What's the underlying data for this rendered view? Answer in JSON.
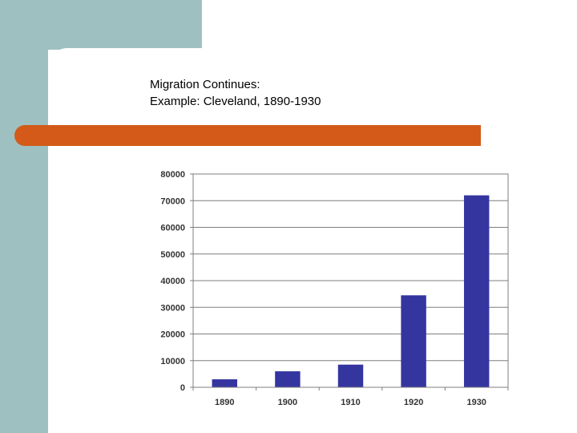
{
  "slide": {
    "title_line1": "Migration Continues:",
    "title_line2": "Example: Cleveland, 1890-1930"
  },
  "colors": {
    "teal": "#9fc0c0",
    "orange": "#d35a18",
    "bar": "#3535a0",
    "grid": "#7f7f7f"
  },
  "chart_data": {
    "type": "bar",
    "title": "",
    "xlabel": "",
    "ylabel": "",
    "categories": [
      "1890",
      "1900",
      "1910",
      "1920",
      "1930"
    ],
    "values": [
      3000,
      6000,
      8500,
      34500,
      72000
    ],
    "ylim": [
      0,
      80000
    ],
    "yticks": [
      0,
      10000,
      20000,
      30000,
      40000,
      50000,
      60000,
      70000,
      80000
    ],
    "grid": true,
    "legend": "none"
  }
}
